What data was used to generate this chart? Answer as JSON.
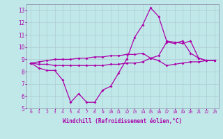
{
  "xlabel": "Windchill (Refroidissement éolien,°C)",
  "x": [
    0,
    1,
    2,
    3,
    4,
    5,
    6,
    7,
    8,
    9,
    10,
    11,
    12,
    13,
    14,
    15,
    16,
    17,
    18,
    19,
    20,
    21,
    22,
    23
  ],
  "line1_y": [
    8.7,
    8.3,
    8.1,
    8.1,
    7.3,
    5.5,
    6.2,
    5.5,
    5.5,
    6.5,
    6.8,
    7.9,
    9.0,
    10.8,
    11.8,
    13.2,
    12.5,
    10.5,
    10.4,
    10.3,
    10.5,
    9.1,
    8.9,
    8.9
  ],
  "line2_y": [
    8.7,
    8.8,
    8.9,
    9.0,
    9.0,
    9.0,
    9.1,
    9.1,
    9.2,
    9.2,
    9.3,
    9.3,
    9.4,
    9.4,
    9.5,
    9.1,
    9.3,
    10.4,
    10.3,
    10.5,
    9.5,
    9.1,
    8.9,
    8.9
  ],
  "line3_y": [
    8.7,
    8.6,
    8.6,
    8.5,
    8.5,
    8.5,
    8.5,
    8.5,
    8.5,
    8.5,
    8.6,
    8.6,
    8.7,
    8.7,
    8.8,
    9.1,
    8.9,
    8.5,
    8.6,
    8.7,
    8.8,
    8.8,
    8.9,
    8.9
  ],
  "line_color": "#aa00aa",
  "bg_color": "#c0e8e8",
  "grid_color": "#b0d0d8",
  "ylim_min": 5,
  "ylim_max": 13.5,
  "xlim_min": -0.5,
  "xlim_max": 23.5
}
